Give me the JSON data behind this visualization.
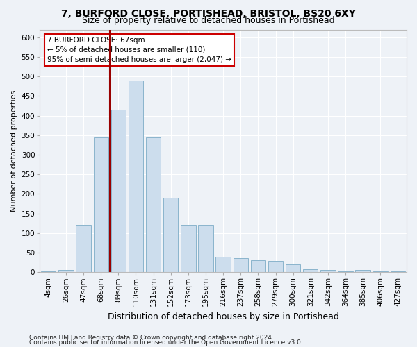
{
  "title": "7, BURFORD CLOSE, PORTISHEAD, BRISTOL, BS20 6XY",
  "subtitle": "Size of property relative to detached houses in Portishead",
  "xlabel": "Distribution of detached houses by size in Portishead",
  "ylabel": "Number of detached properties",
  "categories": [
    "4sqm",
    "26sqm",
    "47sqm",
    "68sqm",
    "89sqm",
    "110sqm",
    "131sqm",
    "152sqm",
    "173sqm",
    "195sqm",
    "216sqm",
    "237sqm",
    "258sqm",
    "279sqm",
    "300sqm",
    "321sqm",
    "342sqm",
    "364sqm",
    "385sqm",
    "406sqm",
    "427sqm"
  ],
  "values": [
    2,
    5,
    120,
    345,
    415,
    490,
    345,
    190,
    120,
    120,
    40,
    35,
    30,
    28,
    20,
    8,
    5,
    2,
    5,
    2,
    2
  ],
  "bar_color": "#ccdded",
  "bar_edge_color": "#8ab4cc",
  "vline_x": 3.5,
  "vline_color": "#990000",
  "annotation_text": "7 BURFORD CLOSE: 67sqm\n← 5% of detached houses are smaller (110)\n95% of semi-detached houses are larger (2,047) →",
  "annotation_box_facecolor": "#ffffff",
  "annotation_box_edgecolor": "#cc0000",
  "ylim": [
    0,
    620
  ],
  "yticks": [
    0,
    50,
    100,
    150,
    200,
    250,
    300,
    350,
    400,
    450,
    500,
    550,
    600
  ],
  "footer1": "Contains HM Land Registry data © Crown copyright and database right 2024.",
  "footer2": "Contains public sector information licensed under the Open Government Licence v3.0.",
  "background_color": "#eef2f7",
  "plot_background": "#eef2f7",
  "grid_color": "#ffffff",
  "title_fontsize": 10,
  "subtitle_fontsize": 9,
  "ylabel_fontsize": 8,
  "xlabel_fontsize": 9,
  "tick_fontsize": 7.5,
  "footer_fontsize": 6.5
}
